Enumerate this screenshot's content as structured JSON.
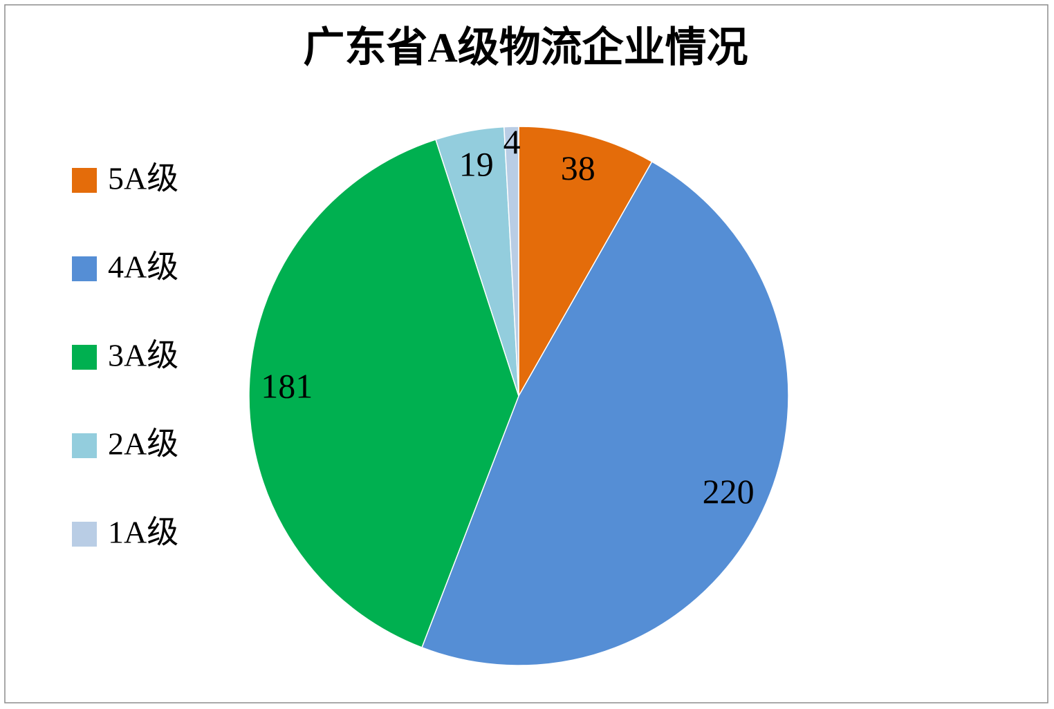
{
  "chart_data": {
    "type": "pie",
    "title": "广东省A级物流企业情况",
    "categories": [
      "5A级",
      "4A级",
      "3A级",
      "2A级",
      "1A级"
    ],
    "values": [
      38,
      220,
      181,
      19,
      4
    ],
    "colors": [
      "#E46C0A",
      "#558ED5",
      "#00B050",
      "#93CDDD",
      "#B9CDE5"
    ],
    "legend": "left"
  }
}
